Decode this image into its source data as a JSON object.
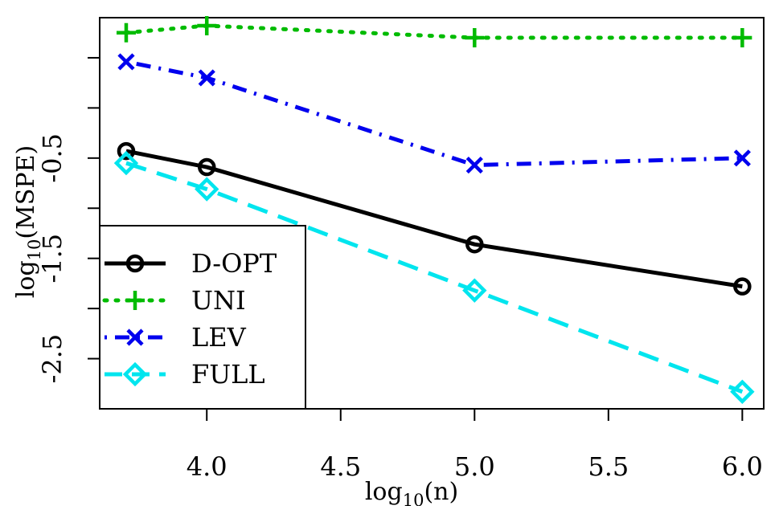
{
  "chart_data": {
    "type": "line",
    "xlabel": "log10(n)",
    "ylabel": "log10(MSPE)",
    "xlim": [
      3.6,
      6.08
    ],
    "ylim": [
      -3.0,
      0.9
    ],
    "xticks": [
      4.0,
      4.5,
      5.0,
      5.5,
      6.0
    ],
    "xtick_labels": [
      "4.0",
      "4.5",
      "5.0",
      "5.5",
      "6.0"
    ],
    "yticks": [
      0.5,
      0.0,
      -0.5,
      -1.0,
      -1.5,
      -2.0,
      -2.5
    ],
    "ytick_labels": [
      "",
      "",
      "-0.5",
      "",
      "-1.5",
      "",
      "-2.5"
    ],
    "x": [
      3.699,
      4.0,
      5.0,
      6.0
    ],
    "series": [
      {
        "name": "D-OPT",
        "values": [
          -0.43,
          -0.59,
          -1.36,
          -1.78
        ],
        "color": "#000000",
        "marker": "circle",
        "dash": "solid"
      },
      {
        "name": "UNI",
        "values": [
          0.75,
          0.82,
          0.7,
          0.7
        ],
        "color": "#00bb00",
        "marker": "plus",
        "dash": "dotted"
      },
      {
        "name": "LEV",
        "values": [
          0.46,
          0.3,
          -0.57,
          -0.5
        ],
        "color": "#0000ee",
        "marker": "cross",
        "dash": "dotdash"
      },
      {
        "name": "FULL",
        "values": [
          -0.55,
          -0.81,
          -1.82,
          -2.83
        ],
        "color": "#00e5ee",
        "marker": "diamond",
        "dash": "dashed"
      }
    ],
    "legend": {
      "position": "bottom-left",
      "entries": [
        "D-OPT",
        "UNI",
        "LEV",
        "FULL"
      ]
    },
    "grid": false
  }
}
